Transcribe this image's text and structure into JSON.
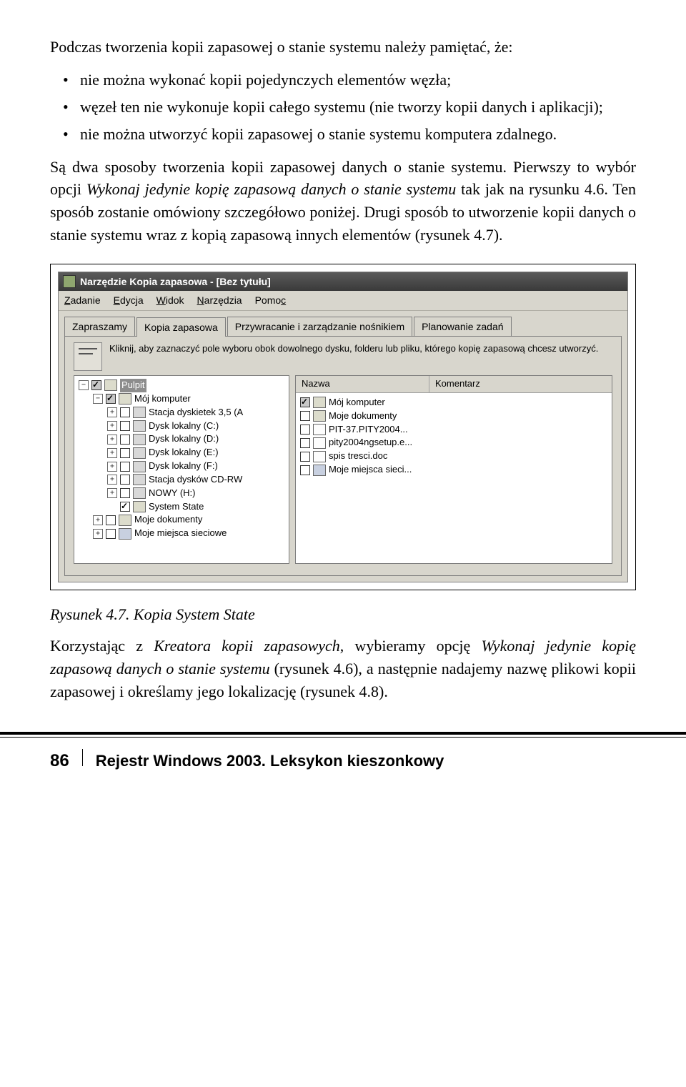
{
  "para1": "Podczas tworzenia kopii zapasowej o stanie systemu należy pamiętać, że:",
  "bullets": {
    "b1": "nie można wykonać kopii pojedynczych elementów węzła;",
    "b2": "węzeł ten nie wykonuje kopii całego systemu (nie tworzy kopii danych i aplikacji);",
    "b3": "nie można utworzyć kopii zapasowej o stanie systemu komputera zdalnego."
  },
  "para2_a": "Są dwa sposoby tworzenia kopii zapasowej danych o stanie systemu. Pierwszy to wybór opcji ",
  "para2_b_italic": "Wykonaj jedynie kopię zapasową danych o stanie systemu",
  "para2_c": " tak jak na rysunku 4.6. Ten sposób zostanie omówiony szczegółowo poniżej. Drugi sposób to utworzenie kopii danych o stanie systemu wraz z kopią zapasową innych elementów (rysunek 4.7).",
  "caption": "Rysunek 4.7. Kopia System State",
  "para3_a": "Korzystając z ",
  "para3_b_italic": "Kreatora kopii zapasowych",
  "para3_c": ", wybieramy opcję ",
  "para3_d_italic": "Wykonaj jedynie kopię zapasową danych o stanie systemu",
  "para3_e": " (rysunek 4.6), a następnie nadajemy nazwę plikowi kopii zapasowej i określamy jego lokalizację (rysunek 4.8).",
  "footer": {
    "page": "86",
    "title": "Rejestr Windows 2003. Leksykon kieszonkowy"
  },
  "window": {
    "title": "Narzędzie Kopia zapasowa - [Bez tytułu]",
    "menu": {
      "m1": "Zadanie",
      "m2": "Edycja",
      "m3": "Widok",
      "m4": "Narzędzia",
      "m5": "Pomoc"
    },
    "tabs": {
      "t1": "Zapraszamy",
      "t2": "Kopia zapasowa",
      "t3": "Przywracanie i zarządzanie nośnikiem",
      "t4": "Planowanie zadań"
    },
    "hint": "Kliknij, aby zaznaczyć pole wyboru obok dowolnego dysku, folderu lub pliku, którego kopię zapasową chcesz utworzyć.",
    "cols": {
      "name": "Nazwa",
      "comment": "Komentarz"
    },
    "tree": {
      "root": "Pulpit",
      "n1": "Mój komputer",
      "n1a": "Stacja dyskietek 3,5 (A",
      "n1b": "Dysk lokalny (C:)",
      "n1c": "Dysk lokalny (D:)",
      "n1d": "Dysk lokalny (E:)",
      "n1e": "Dysk lokalny (F:)",
      "n1f": "Stacja dysków CD-RW",
      "n1g": "NOWY (H:)",
      "n1h": "System State",
      "n2": "Moje dokumenty",
      "n3": "Moje miejsca sieciowe"
    },
    "files": {
      "f1": "Mój komputer",
      "f2": "Moje dokumenty",
      "f3": "PIT-37.PITY2004...",
      "f4": "pity2004ngsetup.e...",
      "f5": "spis tresci.doc",
      "f6": "Moje miejsca sieci..."
    }
  }
}
